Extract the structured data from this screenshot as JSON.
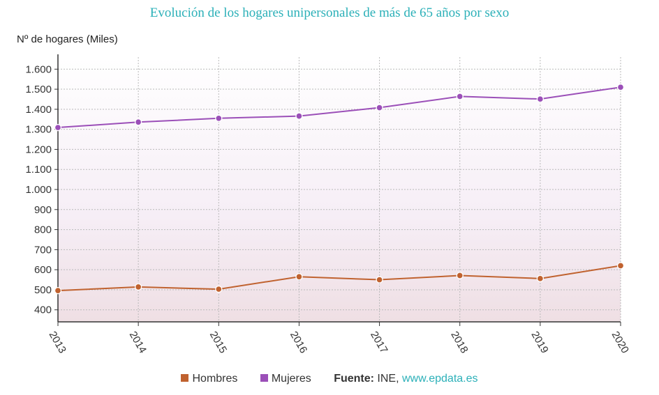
{
  "chart_data": {
    "type": "line",
    "title": "Evolución de los hogares unipersonales de más de 65 años por sexo",
    "ylabel": "Nº de hogares (Miles)",
    "xlabel": "",
    "categories": [
      "2013",
      "2014",
      "2015",
      "2016",
      "2017",
      "2018",
      "2019",
      "2020"
    ],
    "ylim": [
      340,
      1660
    ],
    "yticks": [
      400,
      500,
      600,
      700,
      800,
      900,
      1000,
      1100,
      1200,
      1300,
      1400,
      1500,
      1600
    ],
    "ytick_labels": [
      "400",
      "500",
      "600",
      "700",
      "800",
      "900",
      "1.000",
      "1.100",
      "1.200",
      "1.300",
      "1.400",
      "1.500",
      "1.600"
    ],
    "grid": true,
    "legend_position": "bottom",
    "series": [
      {
        "name": "Hombres",
        "color": "#c0622f",
        "values": [
          496,
          514,
          503,
          565,
          550,
          571,
          556,
          620
        ]
      },
      {
        "name": "Mujeres",
        "color": "#9b4fb8",
        "values": [
          1309,
          1336,
          1355,
          1366,
          1408,
          1464,
          1451,
          1510
        ]
      }
    ]
  },
  "legend": {
    "hombres": "Hombres",
    "mujeres": "Mujeres",
    "source_label": "Fuente:",
    "source_text": " INE, ",
    "source_link": "www.epdata.es"
  }
}
